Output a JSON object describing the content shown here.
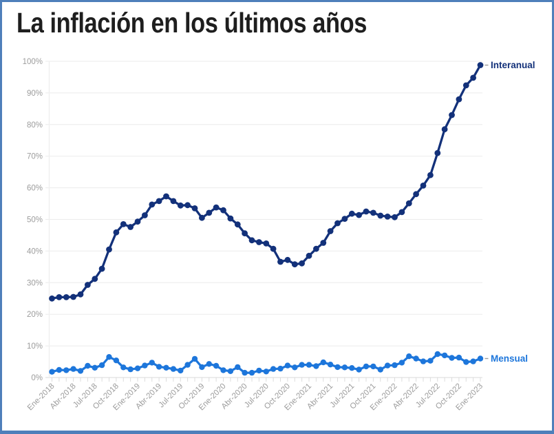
{
  "title": "La inflación en los últimos años",
  "colors": {
    "frame": "#4e7fba",
    "title_text": "#1e1e1e",
    "interanual": "#13317a",
    "mensual": "#1d76db",
    "grid": "#ebebeb",
    "baseline": "#d9d9d9",
    "tick": "#dcdcdc",
    "axis_text": "#9c9c9c",
    "label_dash": "#999999"
  },
  "chart_data": {
    "type": "line",
    "title": "La inflación en los últimos años",
    "x_unit": "month",
    "tick_every_n_points": 3,
    "x_tick_labels": [
      "Ene-2018",
      "Abr-2018",
      "Jul-2018",
      "Oct-2018",
      "Ene-2019",
      "Abr-2019",
      "Jul-2019",
      "Oct-2019",
      "Ene-2020",
      "Abr-2020",
      "Jul-2020",
      "Oct-2020",
      "Ene-2021",
      "Abr-2021",
      "Jul-2021",
      "Oct-2021",
      "Ene-2022",
      "Abr-2022",
      "Jul-2022",
      "Oct-2022",
      "Ene-2023"
    ],
    "y_tick_labels": [
      "0%",
      "10%",
      "20%",
      "30%",
      "40%",
      "50%",
      "60%",
      "70%",
      "80%",
      "90%",
      "100%"
    ],
    "ylim": [
      0,
      100
    ],
    "grid": "horizontal",
    "legend": "line-end-labels",
    "series": [
      {
        "name": "Interanual",
        "color": "#13317a",
        "values": [
          25.0,
          25.4,
          25.4,
          25.5,
          26.3,
          29.3,
          31.2,
          34.4,
          40.5,
          45.9,
          48.5,
          47.6,
          49.3,
          51.3,
          54.7,
          55.8,
          57.3,
          55.8,
          54.4,
          54.5,
          53.5,
          50.5,
          52.1,
          53.8,
          52.9,
          50.3,
          48.4,
          45.6,
          43.4,
          42.8,
          42.4,
          40.7,
          36.6,
          37.2,
          35.8,
          36.1,
          38.5,
          40.7,
          42.6,
          46.3,
          48.8,
          50.2,
          51.8,
          51.4,
          52.5,
          52.1,
          51.2,
          50.9,
          50.7,
          52.3,
          55.1,
          58.0,
          60.7,
          64.0,
          71.0,
          78.5,
          83.0,
          88.0,
          92.4,
          94.8,
          98.8
        ]
      },
      {
        "name": "Mensual",
        "color": "#1d76db",
        "values": [
          1.8,
          2.4,
          2.3,
          2.7,
          2.1,
          3.7,
          3.1,
          3.9,
          6.5,
          5.4,
          3.2,
          2.6,
          2.9,
          3.8,
          4.7,
          3.4,
          3.1,
          2.7,
          2.2,
          4.0,
          5.9,
          3.3,
          4.3,
          3.7,
          2.3,
          2.0,
          3.3,
          1.5,
          1.5,
          2.2,
          1.9,
          2.7,
          2.8,
          3.8,
          3.2,
          4.0,
          4.0,
          3.6,
          4.8,
          4.1,
          3.3,
          3.2,
          3.0,
          2.5,
          3.5,
          3.5,
          2.5,
          3.8,
          3.9,
          4.7,
          6.7,
          6.0,
          5.1,
          5.3,
          7.4,
          7.0,
          6.2,
          6.3,
          4.9,
          5.1,
          6.0
        ]
      }
    ]
  }
}
